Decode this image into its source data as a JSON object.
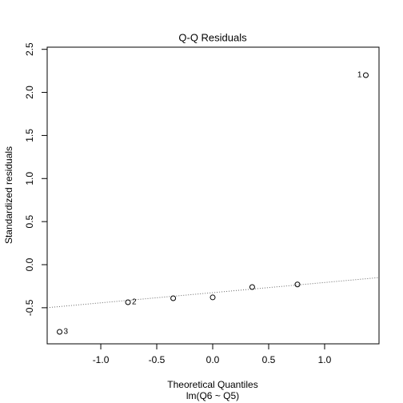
{
  "chart_data": {
    "type": "scatter",
    "title": "Q-Q Residuals",
    "x_label": "Theoretical Quantiles",
    "subtitle": "lm(Q6 ~ Q5)",
    "y_label": "Standardized residuals",
    "x": [
      -1.368,
      -0.757,
      -0.353,
      0,
      0.353,
      0.757,
      1.368
    ],
    "values": [
      -0.78,
      -0.436,
      -0.39,
      -0.38,
      -0.26,
      -0.23,
      2.2
    ],
    "point_labels": [
      "3",
      "2",
      null,
      null,
      null,
      null,
      "1"
    ],
    "reference_line": {
      "intercept": -0.325,
      "slope": 0.118
    },
    "color": "#000000",
    "xlim": [
      -1.479,
      1.486
    ],
    "ylim": [
      -0.919,
      2.525
    ],
    "xticks": [
      {
        "value": -1,
        "label": "-1.0"
      },
      -0.5,
      {
        "value": 0,
        "label": "0.0"
      },
      0.5,
      {
        "value": 1,
        "label": "1.0"
      }
    ],
    "yticks": [
      -0.5,
      {
        "value": 0,
        "label": "0.0"
      },
      0.5,
      {
        "value": 1,
        "label": "1.0"
      },
      1.5,
      {
        "value": 2,
        "label": "2.0"
      },
      2.5
    ]
  }
}
